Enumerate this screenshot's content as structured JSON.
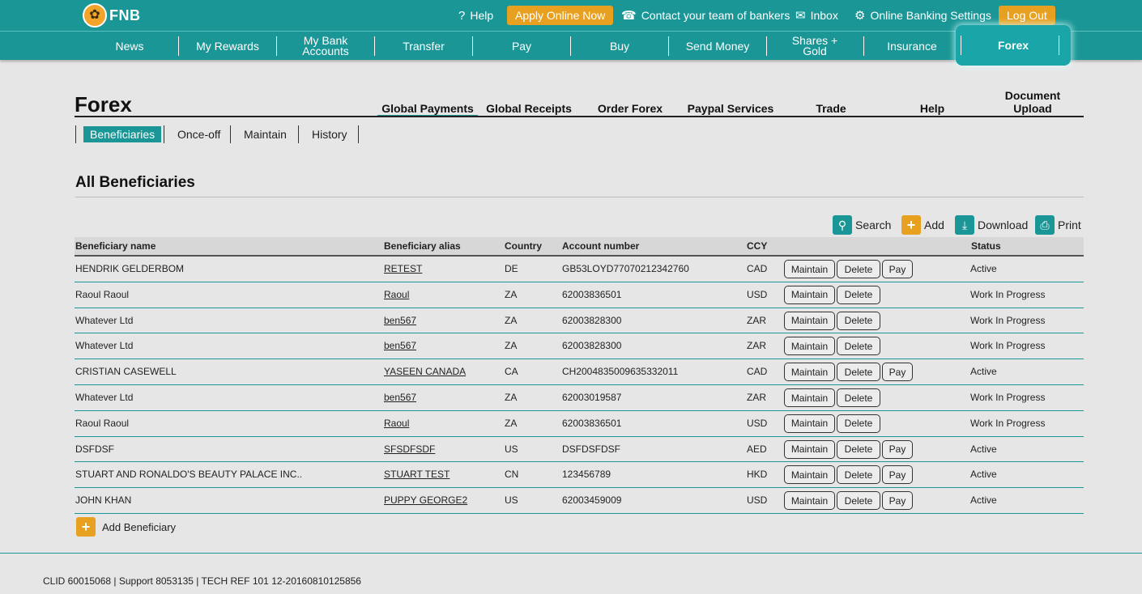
{
  "brand": {
    "logo_text": "FNB"
  },
  "topbar": {
    "help": "Help",
    "apply": "Apply Online Now",
    "contact": "Contact your team of bankers",
    "inbox": "Inbox",
    "settings": "Online Banking Settings",
    "logout": "Log Out"
  },
  "nav": {
    "items": [
      "News",
      "My Rewards",
      "My Bank Accounts",
      "Transfer",
      "Pay",
      "Buy",
      "Send Money",
      "Shares + Gold",
      "Insurance",
      "Forex"
    ],
    "active": "Forex"
  },
  "page": {
    "title": "Forex"
  },
  "subtabs": {
    "global_payments": "Global Payments",
    "global_receipts": "Global Receipts",
    "order_forex": "Order Forex",
    "paypal": "Paypal Services",
    "trade": "Trade",
    "help": "Help",
    "doc_upload": "Document Upload"
  },
  "lvl3": {
    "beneficiaries": "Beneficiaries",
    "once_off": "Once-off",
    "maintain": "Maintain",
    "history": "History"
  },
  "section": {
    "title": "All Beneficiaries"
  },
  "tools": {
    "search": "Search",
    "add": "Add",
    "download": "Download",
    "print": "Print"
  },
  "table": {
    "headers": {
      "name": "Beneficiary name",
      "alias": "Beneficiary alias",
      "country": "Country",
      "account": "Account number",
      "ccy": "CCY",
      "status": "Status"
    },
    "buttons": {
      "maintain": "Maintain",
      "delete": "Delete",
      "pay": "Pay"
    },
    "rows": [
      {
        "name": "HENDRIK GELDERBOM",
        "alias": "RETEST",
        "country": "DE",
        "account": "GB53LOYD77070212342760",
        "ccy": "CAD",
        "status": "Active"
      },
      {
        "name": "Raoul Raoul",
        "alias": "Raoul",
        "country": "ZA",
        "account": "62003836501",
        "ccy": "USD",
        "status": "Work In Progress"
      },
      {
        "name": "Whatever Ltd",
        "alias": "ben567",
        "country": "ZA",
        "account": "62003828300",
        "ccy": "ZAR",
        "status": "Work In Progress"
      },
      {
        "name": "Whatever Ltd",
        "alias": "ben567",
        "country": "ZA",
        "account": "62003828300",
        "ccy": "ZAR",
        "status": "Work In Progress"
      },
      {
        "name": "CRISTIAN CASEWELL",
        "alias": "YASEEN CANADA",
        "country": "CA",
        "account": "CH2004835009635332011",
        "ccy": "CAD",
        "status": "Active"
      },
      {
        "name": "Whatever Ltd",
        "alias": "ben567",
        "country": "ZA",
        "account": "62003019587",
        "ccy": "ZAR",
        "status": "Work In Progress"
      },
      {
        "name": "Raoul Raoul",
        "alias": "Raoul",
        "country": "ZA",
        "account": "62003836501",
        "ccy": "USD",
        "status": "Work In Progress"
      },
      {
        "name": "DSFDSF",
        "alias": "SFSDFSDF",
        "country": "US",
        "account": "DSFDSFDSF",
        "ccy": "AED",
        "status": "Active"
      },
      {
        "name": "STUART AND RONALDO'S BEAUTY PALACE INC..",
        "alias": "STUART TEST",
        "country": "CN",
        "account": "123456789",
        "ccy": "HKD",
        "status": "Active"
      },
      {
        "name": "JOHN KHAN",
        "alias": "PUPPY GEORGE2",
        "country": "US",
        "account": "62003459009",
        "ccy": "USD",
        "status": "Active"
      }
    ]
  },
  "add_beneficiary": "Add Beneficiary",
  "footer": "CLID 60015068 | Support 8053135 | TECH REF 101 12-20160810125856",
  "colors": {
    "teal": "#1a9696",
    "orange": "#e8a020",
    "background": "#e6e6e6"
  }
}
